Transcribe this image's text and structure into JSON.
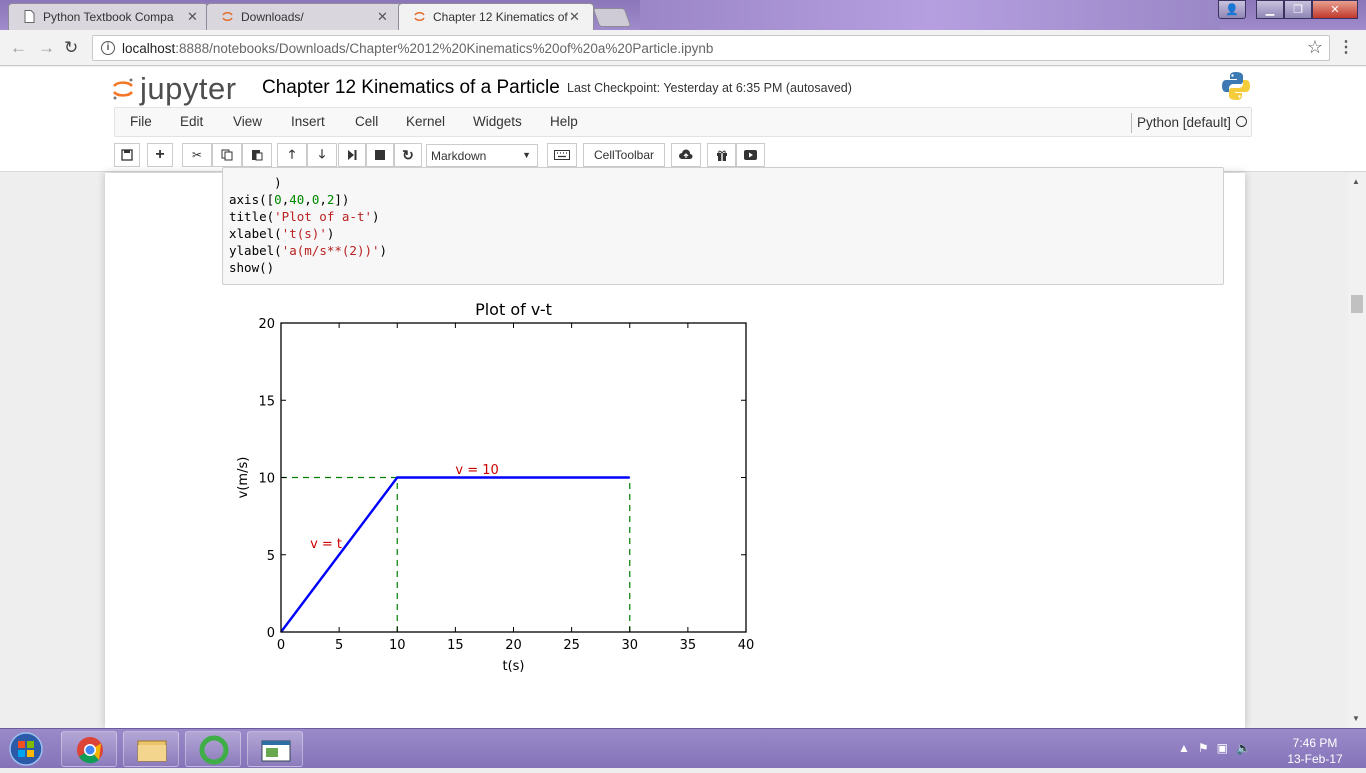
{
  "browser": {
    "tabs": [
      {
        "label": "Python Textbook Compa",
        "icon": "document-icon"
      },
      {
        "label": "Downloads/",
        "icon": "jupyter-spinner-icon"
      },
      {
        "label": "Chapter 12 Kinematics of",
        "icon": "jupyter-spinner-icon",
        "active": true
      }
    ],
    "url_host": "localhost",
    "url_path": ":8888/notebooks/Downloads/Chapter%2012%20Kinematics%20of%20a%20Particle.ipynb"
  },
  "jupyter": {
    "logo_text": "jupyter",
    "notebook_title": "Chapter 12 Kinematics of a Particle",
    "checkpoint": "Last Checkpoint: Yesterday at 6:35 PM (autosaved)",
    "menu": [
      "File",
      "Edit",
      "View",
      "Insert",
      "Cell",
      "Kernel",
      "Widgets",
      "Help"
    ],
    "kernel": "Python [default]",
    "cell_type": "Markdown",
    "celltoolbar": "CellToolbar"
  },
  "code_lines": [
    {
      "parts": [
        {
          "t": "      )",
          "c": ""
        }
      ]
    },
    {
      "parts": [
        {
          "t": "axis([",
          "c": ""
        },
        {
          "t": "0",
          "c": "num"
        },
        {
          "t": ",",
          "c": ""
        },
        {
          "t": "40",
          "c": "num"
        },
        {
          "t": ",",
          "c": ""
        },
        {
          "t": "0",
          "c": "num"
        },
        {
          "t": ",",
          "c": ""
        },
        {
          "t": "2",
          "c": "num"
        },
        {
          "t": "])",
          "c": ""
        }
      ]
    },
    {
      "parts": [
        {
          "t": "title(",
          "c": ""
        },
        {
          "t": "'Plot of a-t'",
          "c": "str"
        },
        {
          "t": ")",
          "c": ""
        }
      ]
    },
    {
      "parts": [
        {
          "t": "xlabel(",
          "c": ""
        },
        {
          "t": "'t(s)'",
          "c": "str"
        },
        {
          "t": ")",
          "c": ""
        }
      ]
    },
    {
      "parts": [
        {
          "t": "ylabel(",
          "c": ""
        },
        {
          "t": "'a(m/s**(2))'",
          "c": "str"
        },
        {
          "t": ")",
          "c": ""
        }
      ]
    },
    {
      "parts": [
        {
          "t": "show()",
          "c": ""
        }
      ]
    }
  ],
  "chart_data": {
    "type": "line",
    "title": "Plot of v-t",
    "xlabel": "t(s)",
    "ylabel": "v(m/s)",
    "xlim": [
      0,
      40
    ],
    "ylim": [
      0,
      20
    ],
    "xticks": [
      0,
      5,
      10,
      15,
      20,
      25,
      30,
      35,
      40
    ],
    "yticks": [
      0,
      5,
      10,
      15,
      20
    ],
    "series": [
      {
        "x": [
          0,
          10,
          30
        ],
        "y": [
          0,
          10,
          10
        ],
        "color": "#0000ff",
        "style": "solid"
      }
    ],
    "guides": [
      {
        "x": [
          0,
          10
        ],
        "y": [
          10,
          10
        ],
        "color": "#008000",
        "style": "dashed"
      },
      {
        "x": [
          10,
          10
        ],
        "y": [
          0,
          10
        ],
        "color": "#008000",
        "style": "dashed"
      },
      {
        "x": [
          30,
          30
        ],
        "y": [
          0,
          10
        ],
        "color": "#008000",
        "style": "dashed"
      }
    ],
    "annotations": [
      {
        "text": "v = t",
        "x": 2.5,
        "y": 5.7,
        "color": "#cc0000"
      },
      {
        "text": "v = 10",
        "x": 15,
        "y": 10.5,
        "color": "#cc0000"
      }
    ],
    "grid": false
  },
  "taskbar": {
    "time": "7:46 PM",
    "date": "13-Feb-17"
  }
}
